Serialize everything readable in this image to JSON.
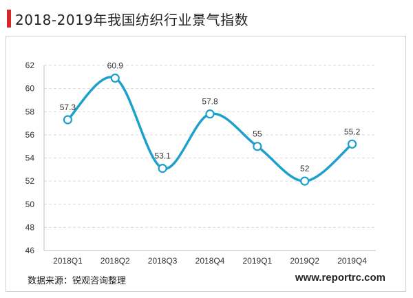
{
  "header": {
    "title": "2018-2019年我国纺织行业景气指数"
  },
  "footer": {
    "source": "数据来源：锐观咨询整理",
    "site": "www.reportrc.com"
  },
  "colors": {
    "line": "#1ea0cc",
    "accent": "#d7262a",
    "grid": "#d9d9d9"
  },
  "chart_data": {
    "type": "line",
    "title": "2018-2019年我国纺织行业景气指数",
    "xlabel": "",
    "ylabel": "",
    "categories": [
      "2018Q1",
      "2018Q2",
      "2018Q3",
      "2018Q4",
      "2019Q1",
      "2019Q2",
      "2019Q4"
    ],
    "series": [
      {
        "name": "景气指数",
        "values": [
          57.3,
          60.9,
          53.1,
          57.8,
          55,
          52,
          55.2
        ],
        "labels": [
          "57.3",
          "60.9",
          "53.1",
          "57.8",
          "55",
          "52",
          "55.2"
        ]
      }
    ],
    "ylim": [
      46,
      62
    ],
    "yticks": [
      46,
      48,
      50,
      52,
      54,
      56,
      58,
      60,
      62
    ],
    "grid": true,
    "smooth": true,
    "marker": "hollow-circle"
  }
}
